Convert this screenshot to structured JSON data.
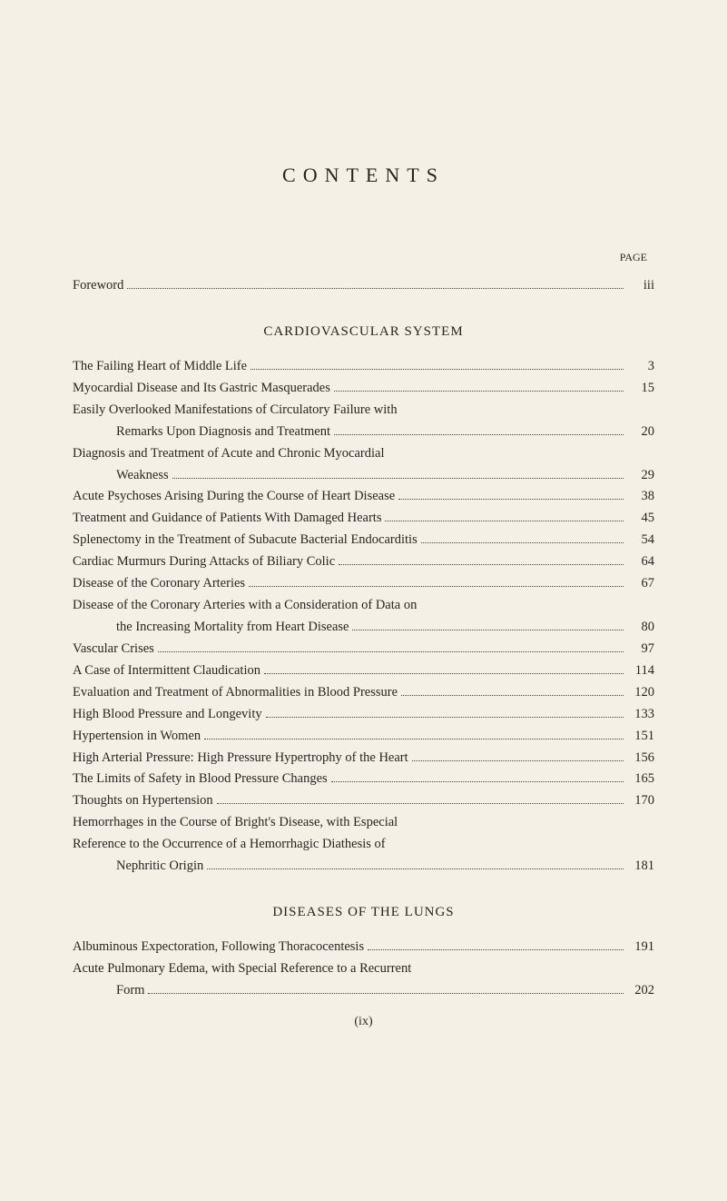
{
  "title": "CONTENTS",
  "page_label": "PAGE",
  "foreword": {
    "text": "Foreword",
    "page": "iii"
  },
  "sections": [
    {
      "heading": "CARDIOVASCULAR SYSTEM",
      "entries": [
        {
          "lines": [
            "The Failing Heart of Middle Life"
          ],
          "page": "3"
        },
        {
          "lines": [
            "Myocardial Disease and Its Gastric Masquerades"
          ],
          "page": "15"
        },
        {
          "lines": [
            "Easily Overlooked Manifestations of Circulatory Failure with",
            "Remarks Upon Diagnosis and Treatment"
          ],
          "page": "20"
        },
        {
          "lines": [
            "Diagnosis and Treatment of Acute and Chronic Myocardial",
            "Weakness"
          ],
          "page": "29"
        },
        {
          "lines": [
            "Acute Psychoses Arising During the Course of Heart Disease"
          ],
          "page": "38"
        },
        {
          "lines": [
            "Treatment and Guidance of Patients With Damaged Hearts"
          ],
          "page": "45"
        },
        {
          "lines": [
            "Splenectomy in the Treatment of Subacute Bacterial Endocarditis"
          ],
          "page": "54"
        },
        {
          "lines": [
            "Cardiac Murmurs During Attacks of Biliary Colic"
          ],
          "page": "64"
        },
        {
          "lines": [
            "Disease of the Coronary Arteries"
          ],
          "page": "67"
        },
        {
          "lines": [
            "Disease of the Coronary Arteries with a Consideration of Data on",
            "the Increasing Mortality from Heart Disease"
          ],
          "page": "80"
        },
        {
          "lines": [
            "Vascular Crises"
          ],
          "page": "97"
        },
        {
          "lines": [
            "A Case of Intermittent Claudication"
          ],
          "page": "114"
        },
        {
          "lines": [
            "Evaluation and Treatment of Abnormalities in Blood Pressure"
          ],
          "page": "120"
        },
        {
          "lines": [
            "High Blood Pressure and Longevity"
          ],
          "page": "133"
        },
        {
          "lines": [
            "Hypertension in Women"
          ],
          "page": "151"
        },
        {
          "lines": [
            "High Arterial Pressure: High Pressure Hypertrophy of the Heart"
          ],
          "page": "156"
        },
        {
          "lines": [
            "The Limits of Safety in Blood Pressure Changes"
          ],
          "page": "165"
        },
        {
          "lines": [
            "Thoughts on Hypertension"
          ],
          "page": "170"
        },
        {
          "lines": [
            "Hemorrhages in the Course of Bright's Disease, with Especial",
            "Reference to the Occurrence of a Hemorrhagic Diathesis of",
            "Nephritic Origin"
          ],
          "page": "181"
        }
      ]
    },
    {
      "heading": "DISEASES OF THE LUNGS",
      "entries": [
        {
          "lines": [
            "Albuminous Expectoration, Following Thoracocentesis"
          ],
          "page": "191"
        },
        {
          "lines": [
            "Acute Pulmonary Edema, with Special Reference to a Recurrent",
            "Form"
          ],
          "page": "202"
        }
      ]
    }
  ],
  "footer_page": "(ix)",
  "colors": {
    "background": "#f5f0e6",
    "text": "#2a2420",
    "dots": "#4a4038"
  },
  "typography": {
    "body_font": "Georgia, Times New Roman, serif",
    "title_size": 22,
    "title_letter_spacing": 8,
    "body_size": 14.5,
    "line_height": 1.65
  }
}
